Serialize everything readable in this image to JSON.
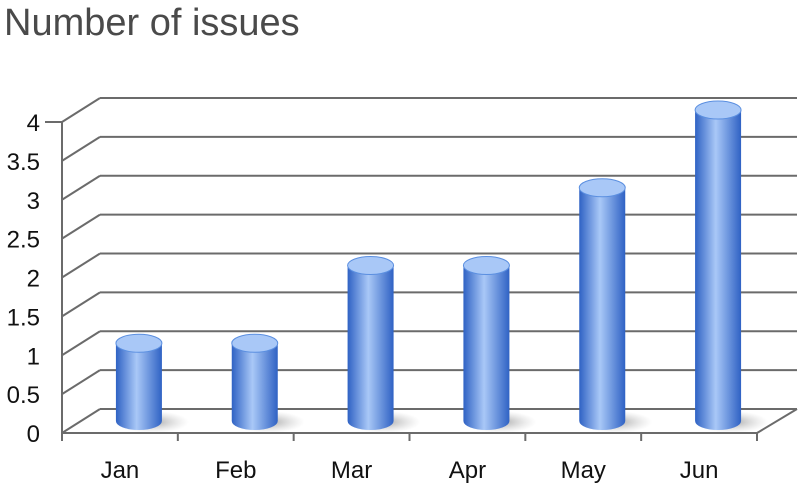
{
  "chart_data": {
    "type": "bar",
    "style": "3d-cylinder",
    "title": "Number of issues",
    "xlabel": "",
    "ylabel": "",
    "categories": [
      "Jan",
      "Feb",
      "Mar",
      "Apr",
      "May",
      "Jun"
    ],
    "values": [
      1,
      1,
      2,
      2,
      3,
      4
    ],
    "yticks": [
      "0",
      "0.5",
      "1",
      "1.5",
      "2",
      "2.5",
      "3",
      "3.5",
      "4"
    ],
    "ylim": [
      0,
      4
    ],
    "grid": true,
    "legend": "none",
    "colors": {
      "bar": "#5b8fe0",
      "bar_light": "#a9c8f7",
      "bar_dark": "#2f62c4",
      "grid": "#6b6b6b"
    }
  }
}
